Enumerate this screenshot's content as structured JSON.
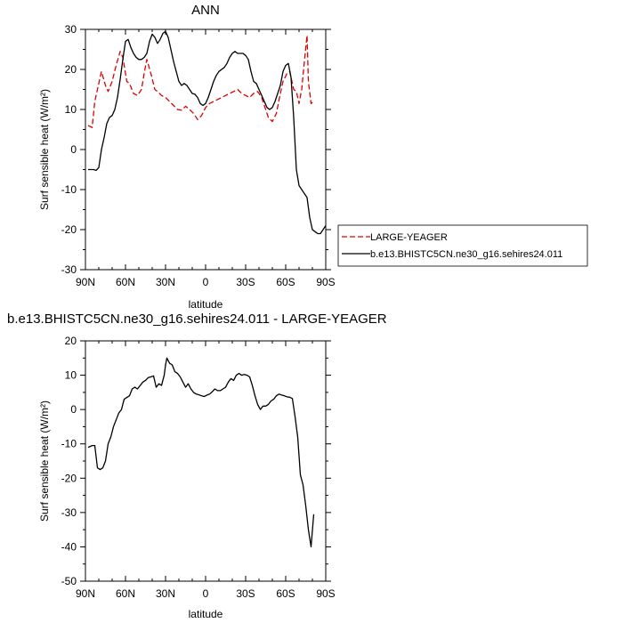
{
  "colors": {
    "model": "#000000",
    "obs": "#dd0000"
  },
  "chart_data": [
    {
      "type": "line",
      "title": "ANN",
      "xlabel": "latitude",
      "ylabel": "Surf sensible heat (W/m²)",
      "xlim": [
        90,
        -90
      ],
      "ylim": [
        -30,
        30
      ],
      "xticks": [
        90,
        60,
        30,
        0,
        -30,
        -60,
        -90
      ],
      "xtick_labels": [
        "90N",
        "60N",
        "30N",
        "0",
        "30S",
        "60S",
        "90S"
      ],
      "yticks": [
        -30,
        -20,
        -10,
        0,
        10,
        20,
        30
      ],
      "ytick_labels": [
        "-30",
        "-20",
        "-10",
        "0",
        "10",
        "20",
        "30"
      ],
      "legend": {
        "placement": "right"
      },
      "series": [
        {
          "name": "LARGE-YEAGER",
          "style": "dashed",
          "color": "#dd0000",
          "x": [
            88,
            85,
            83,
            80,
            78,
            75,
            73,
            70,
            67,
            64,
            62,
            59,
            57,
            54,
            51,
            48,
            46,
            44,
            41,
            38,
            36,
            33,
            30,
            27,
            24,
            21,
            18,
            15,
            12,
            9,
            6,
            3,
            0,
            -3,
            -6,
            -9,
            -12,
            -15,
            -18,
            -21,
            -24,
            -27,
            -30,
            -33,
            -36,
            -39,
            -42,
            -44,
            -47,
            -50,
            -53,
            -56,
            -58,
            -61,
            -63,
            -66,
            -68,
            -70,
            -72,
            -74,
            -76,
            -77,
            -79,
            -81
          ],
          "y": [
            6,
            5.5,
            12,
            16.5,
            19.5,
            16,
            14.5,
            17,
            21,
            24.5,
            23,
            17,
            16.5,
            14,
            13.5,
            15,
            19,
            22.5,
            19,
            15,
            14.5,
            13.5,
            13,
            12,
            11,
            10,
            9.8,
            10.8,
            10,
            9,
            7.5,
            8.5,
            10.5,
            11.5,
            12,
            12.5,
            13,
            13.5,
            14,
            14.5,
            15,
            14,
            13.5,
            13,
            14,
            14.5,
            13,
            11,
            8,
            7,
            9,
            14,
            17,
            19,
            19.5,
            15,
            14.5,
            11.5,
            15,
            22,
            28.5,
            17,
            11.5,
            12
          ]
        },
        {
          "name": "b.e13.BHISTC5CN.ne30_g16.sehires24.011",
          "style": "solid",
          "color": "#000000",
          "x": [
            88,
            86,
            84,
            82,
            80,
            78,
            76,
            74,
            72,
            70,
            68,
            66,
            64,
            62,
            60,
            58,
            56,
            54,
            52,
            50,
            48,
            46,
            44,
            42,
            40,
            38,
            36,
            34,
            32,
            30,
            28,
            26,
            24,
            22,
            20,
            18,
            16,
            14,
            12,
            10,
            8,
            6,
            4,
            2,
            0,
            -2,
            -4,
            -6,
            -8,
            -10,
            -12,
            -14,
            -16,
            -18,
            -20,
            -22,
            -24,
            -26,
            -28,
            -30,
            -32,
            -34,
            -36,
            -38,
            -40,
            -42,
            -44,
            -46,
            -48,
            -50,
            -52,
            -54,
            -56,
            -58,
            -60,
            -62,
            -64,
            -66,
            -68,
            -70,
            -72,
            -74,
            -76,
            -78,
            -80,
            -82,
            -84,
            -86,
            -88,
            -90
          ],
          "y": [
            -5,
            -5,
            -5,
            -5.2,
            -4.5,
            0,
            3,
            6.5,
            8,
            8.5,
            10,
            13,
            17.5,
            22.5,
            27,
            27.5,
            25.5,
            24,
            23,
            22.5,
            22.5,
            23,
            24,
            27,
            28.8,
            28,
            26.5,
            27.5,
            29,
            29.5,
            28,
            25,
            22,
            19.5,
            17,
            16,
            16.5,
            16,
            15,
            14,
            13.8,
            13,
            11.5,
            11,
            11.5,
            13,
            15,
            17,
            18.5,
            19.5,
            20,
            20.5,
            21.5,
            23,
            24,
            24.5,
            24,
            24,
            24,
            23.5,
            22.5,
            19.5,
            17,
            16.5,
            15,
            13.5,
            12,
            10.5,
            10,
            10.5,
            12,
            14,
            16,
            19.5,
            21,
            21.5,
            18,
            8,
            -5,
            -9,
            -10,
            -11,
            -12,
            -17,
            -20,
            -20.5,
            -21,
            -21,
            -20,
            -19
          ]
        }
      ]
    },
    {
      "type": "line",
      "title": "b.e13.BHISTC5CN.ne30_g16.sehires24.011 - LARGE-YEAGER",
      "xlabel": "latitude",
      "ylabel": "Surf sensible heat (W/m²)",
      "xlim": [
        90,
        -90
      ],
      "ylim": [
        -50,
        20
      ],
      "xticks": [
        90,
        60,
        30,
        0,
        -30,
        -60,
        -90
      ],
      "xtick_labels": [
        "90N",
        "60N",
        "30N",
        "0",
        "30S",
        "60S",
        "90S"
      ],
      "yticks": [
        -50,
        -40,
        -30,
        -20,
        -10,
        0,
        10,
        20
      ],
      "ytick_labels": [
        "-50",
        "-40",
        "-30",
        "-20",
        "-10",
        "0",
        "10",
        "20"
      ],
      "series": [
        {
          "style": "solid",
          "color": "#000000",
          "x": [
            88,
            85,
            83,
            81,
            79,
            77,
            75,
            73,
            71,
            69,
            67,
            65,
            63,
            61,
            59,
            57,
            55,
            53,
            51,
            49,
            47,
            45,
            43,
            41,
            39,
            37,
            35,
            33,
            31,
            30,
            29,
            27,
            25,
            23,
            21,
            19,
            17,
            15,
            13,
            11,
            9,
            7,
            5,
            3,
            1,
            -1,
            -3,
            -5,
            -7,
            -9,
            -11,
            -13,
            -15,
            -17,
            -19,
            -21,
            -23,
            -25,
            -27,
            -29,
            -31,
            -33,
            -35,
            -37,
            -39,
            -41,
            -43,
            -45,
            -47,
            -49,
            -51,
            -53,
            -55,
            -57,
            -59,
            -61,
            -63,
            -65,
            -67,
            -69,
            -71,
            -73,
            -75,
            -77,
            -79,
            -81
          ],
          "y": [
            -11,
            -10.5,
            -10.5,
            -17,
            -17.5,
            -17,
            -15,
            -10,
            -8,
            -5,
            -3,
            -1,
            0,
            3,
            3.5,
            4,
            6,
            6.5,
            6,
            7,
            8,
            8.5,
            9.3,
            9.5,
            9.8,
            6.5,
            7.5,
            7,
            10,
            13,
            15,
            13.5,
            13,
            11,
            10.5,
            9.5,
            8,
            6.5,
            7.5,
            6,
            5,
            4.5,
            4.3,
            4,
            3.8,
            4.2,
            4.5,
            5.2,
            6,
            5.5,
            5.5,
            6,
            6.5,
            8,
            9,
            8.5,
            10,
            10.5,
            10,
            10.2,
            10,
            9.5,
            7,
            4,
            1.5,
            0,
            1,
            1,
            1.5,
            2.5,
            3,
            4,
            4.5,
            4.2,
            4,
            3.7,
            3.6,
            3.2,
            -2,
            -8,
            -19,
            -22,
            -28,
            -35,
            -40,
            -30.5
          ]
        }
      ]
    }
  ]
}
